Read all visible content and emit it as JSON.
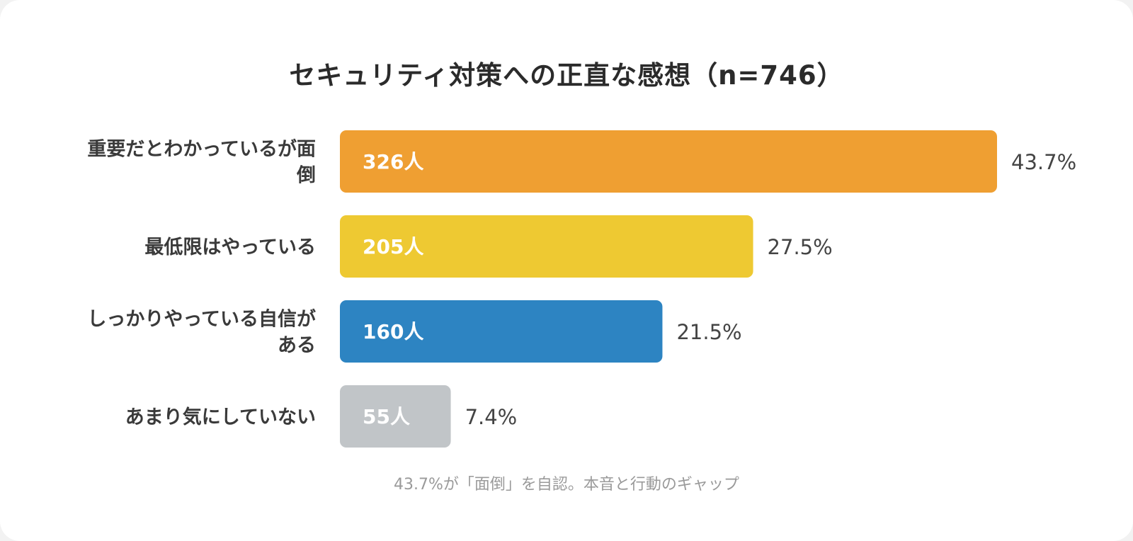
{
  "chart_data": {
    "type": "bar",
    "orientation": "horizontal",
    "title": "セキュリティ対策への正直な感想（n=746）",
    "caption": "43.7%が「面倒」を自認。本音と行動のギャップ",
    "categories": [
      "重要だとわかっているが面倒",
      "最低限はやっている",
      "しっかりやっている自信がある",
      "あまり気にしていない"
    ],
    "category_label_lines": [
      [
        "重要だとわかっているが面",
        "倒"
      ],
      [
        "最低限はやっている"
      ],
      [
        "しっかりやっている自信が",
        "ある"
      ],
      [
        "あまり気にしていない"
      ]
    ],
    "values": [
      326,
      205,
      160,
      55
    ],
    "value_labels": [
      "326人",
      "205人",
      "160人",
      "55人"
    ],
    "percentages": [
      43.7,
      27.5,
      21.5,
      7.4
    ],
    "percentage_labels": [
      "43.7%",
      "27.5%",
      "21.5%",
      "7.4%"
    ],
    "colors": [
      "#ef9f32",
      "#eec932",
      "#2d84c2",
      "#c1c5c8"
    ],
    "xlim": [
      0,
      326
    ],
    "grid": false,
    "legend": "none"
  }
}
